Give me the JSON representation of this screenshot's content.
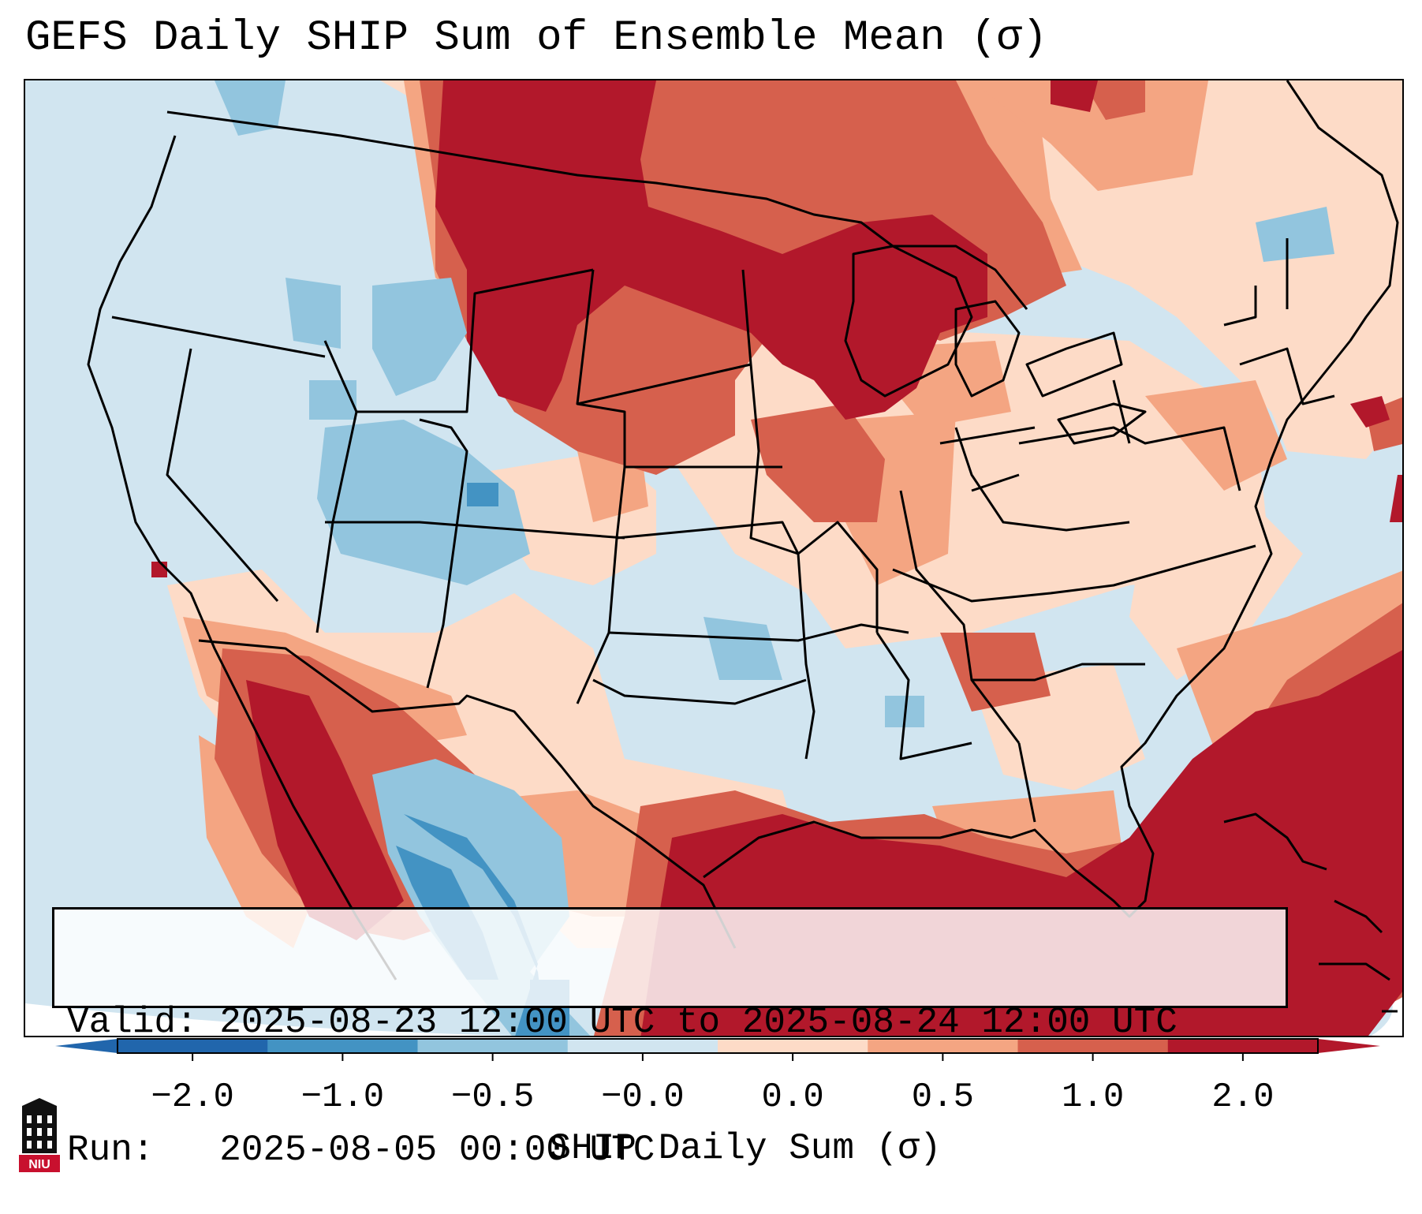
{
  "title": "GEFS Daily SHIP Sum of Ensemble Mean (σ)",
  "info": {
    "valid_line": "Valid: 2025-08-23 12:00 UTC to 2025-08-24 12:00 UTC",
    "run_line": "Run:   2025-08-05 00:00 UTC"
  },
  "colorbar": {
    "label": "SHIP Daily Sum (σ)",
    "ticks": [
      "−2.0",
      "−1.0",
      "−0.5",
      "−0.0",
      "0.0",
      "0.5",
      "1.0",
      "2.0"
    ],
    "colors": [
      "#2166ac",
      "#4393c3",
      "#92c5de",
      "#d1e5f0",
      "#fddbc7",
      "#f4a582",
      "#d6604d",
      "#b2182b"
    ],
    "min_arrow_color": "#2166ac",
    "max_arrow_color": "#b2182b"
  },
  "logo": {
    "text": "NIU",
    "color": "#c8102e"
  }
}
